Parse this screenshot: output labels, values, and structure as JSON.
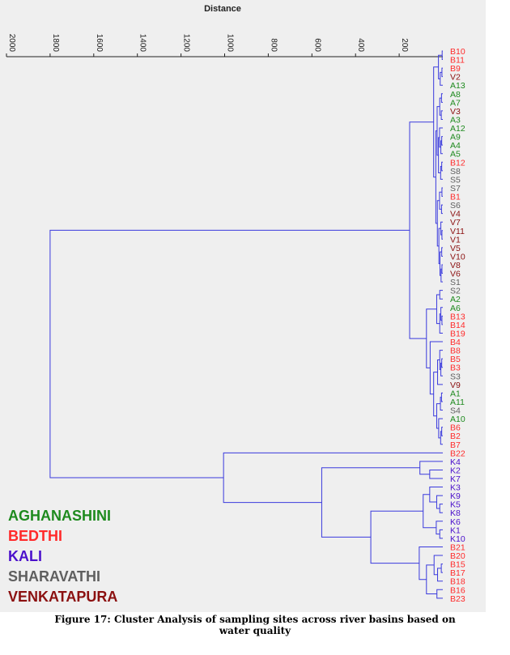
{
  "chart_data": {
    "type": "dendrogram",
    "orientation": "leaves-right",
    "xlabel": "Distance",
    "xlim": [
      0,
      2000
    ],
    "x_ticks": [
      2000,
      1800,
      1600,
      1400,
      1200,
      1000,
      800,
      600,
      400,
      200
    ],
    "grid": false,
    "legend_position": "bottom-left",
    "legend": [
      {
        "label": "AGHANASHINI",
        "color": "#1e8a1e"
      },
      {
        "label": "BEDTHI",
        "color": "#ff2a2a"
      },
      {
        "label": "KALI",
        "color": "#4b10cc"
      },
      {
        "label": "SHARAVATHI",
        "color": "#5f5f5f"
      },
      {
        "label": "VENKATAPURA",
        "color": "#8b1010"
      }
    ],
    "leaves": [
      {
        "label": "B10",
        "basin": "BEDTHI"
      },
      {
        "label": "B11",
        "basin": "BEDTHI"
      },
      {
        "label": "B9",
        "basin": "BEDTHI"
      },
      {
        "label": "V2",
        "basin": "VENKATAPURA"
      },
      {
        "label": "A13",
        "basin": "AGHANASHINI"
      },
      {
        "label": "A8",
        "basin": "AGHANASHINI"
      },
      {
        "label": "A7",
        "basin": "AGHANASHINI"
      },
      {
        "label": "V3",
        "basin": "VENKATAPURA"
      },
      {
        "label": "A3",
        "basin": "AGHANASHINI"
      },
      {
        "label": "A12",
        "basin": "AGHANASHINI"
      },
      {
        "label": "A9",
        "basin": "AGHANASHINI"
      },
      {
        "label": "A4",
        "basin": "AGHANASHINI"
      },
      {
        "label": "A5",
        "basin": "AGHANASHINI"
      },
      {
        "label": "B12",
        "basin": "BEDTHI"
      },
      {
        "label": "S8",
        "basin": "SHARAVATHI"
      },
      {
        "label": "S5",
        "basin": "SHARAVATHI"
      },
      {
        "label": "S7",
        "basin": "SHARAVATHI"
      },
      {
        "label": "B1",
        "basin": "BEDTHI"
      },
      {
        "label": "S6",
        "basin": "SHARAVATHI"
      },
      {
        "label": "V4",
        "basin": "VENKATAPURA"
      },
      {
        "label": "V7",
        "basin": "VENKATAPURA"
      },
      {
        "label": "V11",
        "basin": "VENKATAPURA"
      },
      {
        "label": "V1",
        "basin": "VENKATAPURA"
      },
      {
        "label": "V5",
        "basin": "VENKATAPURA"
      },
      {
        "label": "V10",
        "basin": "VENKATAPURA"
      },
      {
        "label": "V8",
        "basin": "VENKATAPURA"
      },
      {
        "label": "V6",
        "basin": "VENKATAPURA"
      },
      {
        "label": "S1",
        "basin": "SHARAVATHI"
      },
      {
        "label": "S2",
        "basin": "SHARAVATHI"
      },
      {
        "label": "A2",
        "basin": "AGHANASHINI"
      },
      {
        "label": "A6",
        "basin": "AGHANASHINI"
      },
      {
        "label": "B13",
        "basin": "BEDTHI"
      },
      {
        "label": "B14",
        "basin": "BEDTHI"
      },
      {
        "label": "B19",
        "basin": "BEDTHI"
      },
      {
        "label": "B4",
        "basin": "BEDTHI"
      },
      {
        "label": "B8",
        "basin": "BEDTHI"
      },
      {
        "label": "B5",
        "basin": "BEDTHI"
      },
      {
        "label": "B3",
        "basin": "BEDTHI"
      },
      {
        "label": "S3",
        "basin": "SHARAVATHI"
      },
      {
        "label": "V9",
        "basin": "VENKATAPURA"
      },
      {
        "label": "A1",
        "basin": "AGHANASHINI"
      },
      {
        "label": "A11",
        "basin": "AGHANASHINI"
      },
      {
        "label": "S4",
        "basin": "SHARAVATHI"
      },
      {
        "label": "A10",
        "basin": "AGHANASHINI"
      },
      {
        "label": "B6",
        "basin": "BEDTHI"
      },
      {
        "label": "B2",
        "basin": "BEDTHI"
      },
      {
        "label": "B7",
        "basin": "BEDTHI"
      },
      {
        "label": "B22",
        "basin": "BEDTHI"
      },
      {
        "label": "K4",
        "basin": "KALI"
      },
      {
        "label": "K2",
        "basin": "KALI"
      },
      {
        "label": "K7",
        "basin": "KALI"
      },
      {
        "label": "K3",
        "basin": "KALI"
      },
      {
        "label": "K9",
        "basin": "KALI"
      },
      {
        "label": "K5",
        "basin": "KALI"
      },
      {
        "label": "K8",
        "basin": "KALI"
      },
      {
        "label": "K6",
        "basin": "KALI"
      },
      {
        "label": "K1",
        "basin": "KALI"
      },
      {
        "label": "K10",
        "basin": "KALI"
      },
      {
        "label": "B21",
        "basin": "BEDTHI"
      },
      {
        "label": "B20",
        "basin": "BEDTHI"
      },
      {
        "label": "B15",
        "basin": "BEDTHI"
      },
      {
        "label": "B17",
        "basin": "BEDTHI"
      },
      {
        "label": "B18",
        "basin": "BEDTHI"
      },
      {
        "label": "B16",
        "basin": "BEDTHI"
      },
      {
        "label": "B23",
        "basin": "BEDTHI"
      }
    ],
    "merges": [
      {
        "a": "L:B10",
        "b": "L:B11",
        "h": 3
      },
      {
        "a": "L:B9",
        "b": "L:V2",
        "h": 4
      },
      {
        "a": "N:1",
        "b": "L:A13",
        "h": 12
      },
      {
        "a": "N:0",
        "b": "N:2",
        "h": 20
      },
      {
        "a": "L:A8",
        "b": "L:A7",
        "h": 6
      },
      {
        "a": "L:V3",
        "b": "L:A3",
        "h": 7
      },
      {
        "a": "N:4",
        "b": "N:5",
        "h": 14
      },
      {
        "a": "L:A9",
        "b": "L:A4",
        "h": 5
      },
      {
        "a": "N:7",
        "b": "L:A5",
        "h": 9
      },
      {
        "a": "L:A12",
        "b": "N:8",
        "h": 15
      },
      {
        "a": "L:B12",
        "b": "L:S8",
        "h": 5
      },
      {
        "a": "N:10",
        "b": "L:S5",
        "h": 10
      },
      {
        "a": "N:9",
        "b": "N:11",
        "h": 20
      },
      {
        "a": "N:6",
        "b": "N:12",
        "h": 26
      },
      {
        "a": "L:S7",
        "b": "L:B1",
        "h": 4
      },
      {
        "a": "L:S6",
        "b": "L:V4",
        "h": 6
      },
      {
        "a": "N:14",
        "b": "N:15",
        "h": 15
      },
      {
        "a": "L:V11",
        "b": "L:V1",
        "h": 4
      },
      {
        "a": "L:V7",
        "b": "N:17",
        "h": 9
      },
      {
        "a": "L:V5",
        "b": "L:V10",
        "h": 5
      },
      {
        "a": "L:V8",
        "b": "L:V6",
        "h": 4
      },
      {
        "a": "N:20",
        "b": "L:S1",
        "h": 8
      },
      {
        "a": "N:19",
        "b": "N:21",
        "h": 13
      },
      {
        "a": "N:18",
        "b": "N:22",
        "h": 18
      },
      {
        "a": "N:16",
        "b": "N:23",
        "h": 25
      },
      {
        "a": "N:13",
        "b": "N:24",
        "h": 32
      },
      {
        "a": "N:3",
        "b": "N:25",
        "h": 42
      },
      {
        "a": "L:S2",
        "b": "L:A2",
        "h": 14
      },
      {
        "a": "L:B13",
        "b": "L:B14",
        "h": 4
      },
      {
        "a": "L:A6",
        "b": "N:28",
        "h": 9
      },
      {
        "a": "N:29",
        "b": "L:B19",
        "h": 14
      },
      {
        "a": "N:27",
        "b": "N:30",
        "h": 28
      },
      {
        "a": "L:B5",
        "b": "L:B3",
        "h": 5
      },
      {
        "a": "N:32",
        "b": "L:S3",
        "h": 9
      },
      {
        "a": "L:B8",
        "b": "N:33",
        "h": 14
      },
      {
        "a": "N:34",
        "b": "L:V9",
        "h": 24
      },
      {
        "a": "L:A1",
        "b": "L:A11",
        "h": 6
      },
      {
        "a": "N:36",
        "b": "L:S4",
        "h": 11
      },
      {
        "a": "L:B6",
        "b": "L:B2",
        "h": 5
      },
      {
        "a": "N:38",
        "b": "L:B7",
        "h": 10
      },
      {
        "a": "L:A10",
        "b": "N:39",
        "h": 19
      },
      {
        "a": "N:37",
        "b": "N:40",
        "h": 28
      },
      {
        "a": "N:35",
        "b": "N:41",
        "h": 42
      },
      {
        "a": "L:B4",
        "b": "N:42",
        "h": 58
      },
      {
        "a": "N:31",
        "b": "N:43",
        "h": 75
      },
      {
        "a": "N:26",
        "b": "N:44",
        "h": 152
      },
      {
        "a": "L:K2",
        "b": "L:K7",
        "h": 60
      },
      {
        "a": "L:K4",
        "b": "N:46",
        "h": 105
      },
      {
        "a": "L:K5",
        "b": "L:K8",
        "h": 14
      },
      {
        "a": "L:K9",
        "b": "N:48",
        "h": 28
      },
      {
        "a": "L:K3",
        "b": "N:49",
        "h": 60
      },
      {
        "a": "L:K1",
        "b": "L:K10",
        "h": 14
      },
      {
        "a": "L:K6",
        "b": "N:51",
        "h": 30
      },
      {
        "a": "N:50",
        "b": "N:52",
        "h": 90
      },
      {
        "a": "L:B15",
        "b": "L:B17",
        "h": 7
      },
      {
        "a": "N:54",
        "b": "L:B18",
        "h": 24
      },
      {
        "a": "L:B20",
        "b": "N:55",
        "h": 40
      },
      {
        "a": "L:B16",
        "b": "L:B23",
        "h": 27
      },
      {
        "a": "N:56",
        "b": "N:57",
        "h": 75
      },
      {
        "a": "L:B21",
        "b": "N:58",
        "h": 108
      },
      {
        "a": "N:53",
        "b": "N:59",
        "h": 330
      },
      {
        "a": "N:47",
        "b": "N:60",
        "h": 555
      },
      {
        "a": "L:B22",
        "b": "N:61",
        "h": 1005
      },
      {
        "a": "N:45",
        "b": "N:62",
        "h": 1800
      }
    ]
  },
  "caption": {
    "line1": "Figure 17: Cluster Analysis of sampling  sites across river basins based on",
    "line2": "water quality"
  },
  "colors": {
    "plot_background": "#efefef",
    "dendrogram_lines": "#3a3add",
    "axis": "#222222"
  }
}
